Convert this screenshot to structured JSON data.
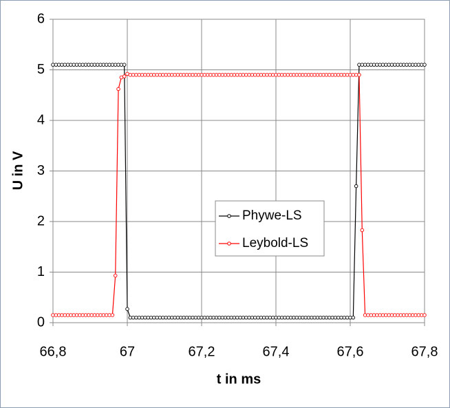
{
  "chart_data": {
    "type": "line",
    "xlabel": "t in ms",
    "ylabel": "U in V",
    "xlim": [
      66.8,
      67.8
    ],
    "xticks": [
      {
        "value": 66.8,
        "label": "66,8"
      },
      67,
      {
        "value": 67.2,
        "label": "67,2"
      },
      {
        "value": 67.4,
        "label": "67,4"
      },
      {
        "value": 67.6,
        "label": "67,6"
      },
      {
        "value": 67.8,
        "label": "67,8"
      }
    ],
    "ylim": [
      0,
      6
    ],
    "yticks": [
      0,
      1,
      2,
      3,
      4,
      5,
      6
    ],
    "grid": true,
    "legend": "center",
    "x": [
      66.8,
      66.808,
      66.816,
      66.824,
      66.832,
      66.84,
      66.848,
      66.856,
      66.864,
      66.872,
      66.88,
      66.888,
      66.896,
      66.904,
      66.912,
      66.92,
      66.928,
      66.936,
      66.944,
      66.952,
      66.96,
      66.968,
      66.976,
      66.984,
      66.992,
      67,
      67.008,
      67.016,
      67.024,
      67.032,
      67.04,
      67.048,
      67.056,
      67.064,
      67.072,
      67.08,
      67.088,
      67.096,
      67.104,
      67.112,
      67.12,
      67.128,
      67.136,
      67.144,
      67.152,
      67.16,
      67.168,
      67.176,
      67.184,
      67.192,
      67.2,
      67.208,
      67.216,
      67.224,
      67.232,
      67.24,
      67.248,
      67.256,
      67.264,
      67.272,
      67.28,
      67.288,
      67.296,
      67.304,
      67.312,
      67.32,
      67.328,
      67.336,
      67.344,
      67.352,
      67.36,
      67.368,
      67.376,
      67.384,
      67.392,
      67.4,
      67.408,
      67.416,
      67.424,
      67.432,
      67.44,
      67.448,
      67.456,
      67.464,
      67.472,
      67.48,
      67.488,
      67.496,
      67.504,
      67.512,
      67.52,
      67.528,
      67.536,
      67.544,
      67.552,
      67.56,
      67.568,
      67.576,
      67.584,
      67.592,
      67.6,
      67.608,
      67.616,
      67.624,
      67.632,
      67.64,
      67.648,
      67.656,
      67.664,
      67.672,
      67.68,
      67.688,
      67.696,
      67.704,
      67.712,
      67.72,
      67.728,
      67.736,
      67.744,
      67.752,
      67.76,
      67.768,
      67.776,
      67.784,
      67.792,
      67.8
    ],
    "series": [
      {
        "name": "Phywe-LS",
        "color": "#000000",
        "values": [
          5.1,
          5.1,
          5.1,
          5.1,
          5.1,
          5.1,
          5.1,
          5.1,
          5.1,
          5.1,
          5.1,
          5.1,
          5.1,
          5.1,
          5.1,
          5.1,
          5.1,
          5.1,
          5.1,
          5.1,
          5.1,
          5.1,
          5.1,
          5.1,
          5.1,
          0.27,
          0.1,
          0.1,
          0.1,
          0.1,
          0.1,
          0.1,
          0.1,
          0.1,
          0.1,
          0.1,
          0.1,
          0.1,
          0.1,
          0.1,
          0.1,
          0.1,
          0.1,
          0.1,
          0.1,
          0.1,
          0.1,
          0.1,
          0.1,
          0.1,
          0.1,
          0.1,
          0.1,
          0.1,
          0.1,
          0.1,
          0.1,
          0.1,
          0.1,
          0.1,
          0.1,
          0.1,
          0.1,
          0.1,
          0.1,
          0.1,
          0.1,
          0.1,
          0.1,
          0.1,
          0.1,
          0.1,
          0.1,
          0.1,
          0.1,
          0.1,
          0.1,
          0.1,
          0.1,
          0.1,
          0.1,
          0.1,
          0.1,
          0.1,
          0.1,
          0.1,
          0.1,
          0.1,
          0.1,
          0.1,
          0.1,
          0.1,
          0.1,
          0.1,
          0.1,
          0.1,
          0.1,
          0.1,
          0.1,
          0.1,
          0.1,
          0.1,
          2.7,
          5.1,
          5.1,
          5.1,
          5.1,
          5.1,
          5.1,
          5.1,
          5.1,
          5.1,
          5.1,
          5.1,
          5.1,
          5.1,
          5.1,
          5.1,
          5.1,
          5.1,
          5.1,
          5.1,
          5.1,
          5.1,
          5.1,
          5.1
        ]
      },
      {
        "name": "Leybold-LS",
        "color": "#ff0000",
        "values": [
          0.15,
          0.15,
          0.15,
          0.15,
          0.15,
          0.15,
          0.15,
          0.15,
          0.15,
          0.15,
          0.15,
          0.15,
          0.15,
          0.15,
          0.15,
          0.15,
          0.15,
          0.15,
          0.15,
          0.15,
          0.15,
          0.93,
          4.62,
          4.85,
          4.87,
          4.92,
          4.9,
          4.9,
          4.9,
          4.9,
          4.9,
          4.9,
          4.9,
          4.9,
          4.9,
          4.9,
          4.9,
          4.9,
          4.9,
          4.9,
          4.9,
          4.9,
          4.9,
          4.9,
          4.9,
          4.9,
          4.9,
          4.9,
          4.9,
          4.9,
          4.9,
          4.9,
          4.9,
          4.9,
          4.9,
          4.9,
          4.9,
          4.9,
          4.9,
          4.9,
          4.9,
          4.9,
          4.9,
          4.9,
          4.9,
          4.9,
          4.9,
          4.9,
          4.9,
          4.9,
          4.9,
          4.9,
          4.9,
          4.9,
          4.9,
          4.9,
          4.9,
          4.9,
          4.9,
          4.9,
          4.9,
          4.9,
          4.9,
          4.9,
          4.9,
          4.9,
          4.9,
          4.9,
          4.9,
          4.9,
          4.9,
          4.9,
          4.9,
          4.9,
          4.9,
          4.9,
          4.9,
          4.9,
          4.9,
          4.9,
          4.9,
          4.9,
          4.9,
          4.9,
          1.83,
          0.15,
          0.15,
          0.15,
          0.15,
          0.15,
          0.15,
          0.15,
          0.15,
          0.15,
          0.15,
          0.15,
          0.15,
          0.15,
          0.15,
          0.15,
          0.15,
          0.15,
          0.15,
          0.15,
          0.15,
          0.15
        ]
      }
    ]
  }
}
